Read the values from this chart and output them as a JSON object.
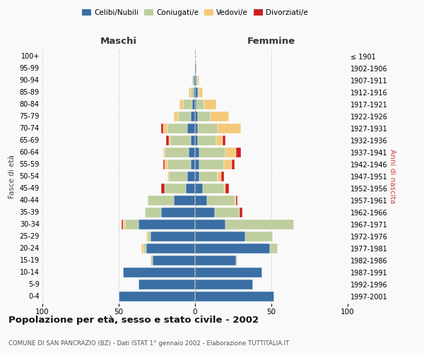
{
  "age_groups": [
    "0-4",
    "5-9",
    "10-14",
    "15-19",
    "20-24",
    "25-29",
    "30-34",
    "35-39",
    "40-44",
    "45-49",
    "50-54",
    "55-59",
    "60-64",
    "65-69",
    "70-74",
    "75-79",
    "80-84",
    "85-89",
    "90-94",
    "95-99",
    "100+"
  ],
  "birth_years": [
    "1997-2001",
    "1992-1996",
    "1987-1991",
    "1982-1986",
    "1977-1981",
    "1972-1976",
    "1967-1971",
    "1962-1966",
    "1957-1961",
    "1952-1956",
    "1947-1951",
    "1942-1946",
    "1937-1941",
    "1932-1936",
    "1927-1931",
    "1922-1926",
    "1917-1921",
    "1912-1916",
    "1907-1911",
    "1902-1906",
    "≤ 1901"
  ],
  "maschi": {
    "celibi": [
      50,
      37,
      47,
      28,
      32,
      29,
      37,
      22,
      14,
      6,
      5,
      3,
      4,
      3,
      5,
      3,
      2,
      1,
      1,
      0,
      0
    ],
    "coniugati": [
      0,
      0,
      0,
      1,
      2,
      2,
      9,
      11,
      17,
      14,
      12,
      15,
      16,
      13,
      13,
      8,
      6,
      2,
      1,
      0,
      0
    ],
    "vedovi": [
      0,
      0,
      0,
      0,
      1,
      1,
      1,
      0,
      0,
      0,
      1,
      2,
      1,
      1,
      3,
      3,
      2,
      1,
      0,
      0,
      0
    ],
    "divorziati": [
      0,
      0,
      0,
      0,
      0,
      0,
      1,
      0,
      0,
      2,
      0,
      1,
      0,
      2,
      1,
      0,
      0,
      0,
      0,
      0,
      0
    ]
  },
  "femmine": {
    "nubili": [
      52,
      38,
      44,
      27,
      49,
      33,
      20,
      13,
      8,
      5,
      3,
      3,
      3,
      2,
      2,
      2,
      1,
      2,
      1,
      1,
      0
    ],
    "coniugate": [
      0,
      0,
      0,
      1,
      5,
      18,
      45,
      16,
      18,
      14,
      12,
      16,
      17,
      12,
      13,
      8,
      5,
      1,
      1,
      0,
      0
    ],
    "vedove": [
      0,
      0,
      0,
      0,
      0,
      0,
      0,
      0,
      1,
      1,
      2,
      5,
      7,
      4,
      15,
      12,
      8,
      2,
      1,
      0,
      0
    ],
    "divorziate": [
      0,
      0,
      0,
      0,
      0,
      0,
      0,
      2,
      1,
      2,
      2,
      2,
      3,
      2,
      0,
      0,
      0,
      0,
      0,
      0,
      0
    ]
  },
  "colors": {
    "celibi": "#3A6EA5",
    "coniugati": "#BFCE9E",
    "vedovi": "#F5C97A",
    "divorziati": "#CC2222"
  },
  "title": "Popolazione per età, sesso e stato civile - 2002",
  "subtitle": "COMUNE DI SAN PANCRAZIO (BZ) - Dati ISTAT 1° gennaio 2002 - Elaborazione TUTTITALIA.IT",
  "xlim": 100,
  "background_color": "#f9f9f9",
  "grid_color": "#cccccc"
}
